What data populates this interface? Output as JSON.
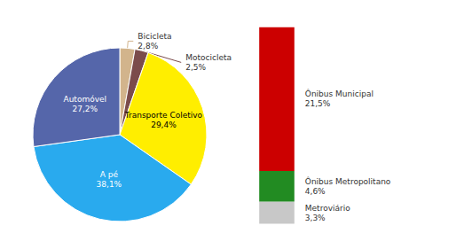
{
  "chart_data": [
    {
      "type": "pie",
      "categories": [
        "Bicicleta",
        "Motocicleta",
        "Transporte Coletivo",
        "A pé",
        "Automóvel"
      ],
      "values": [
        2.8,
        2.5,
        29.4,
        38.1,
        27.2
      ],
      "value_labels": [
        "2,8%",
        "2,5%",
        "29,4%",
        "38,1%",
        "27,2%"
      ],
      "colors": [
        "#D2B48C",
        "#7B4B4B",
        "#FFEE00",
        "#29AAEE",
        "#5566AA"
      ],
      "data_labels": true
    },
    {
      "type": "bar",
      "stacked": true,
      "categories": [
        null
      ],
      "series": [
        {
          "name": "Metroviário",
          "color": "#C8C8C8",
          "values": [
            3.3
          ],
          "value_labels": [
            "3,3%"
          ]
        },
        {
          "name": "Ônibus Metropolitano",
          "color": "#228B22",
          "values": [
            4.6
          ],
          "value_labels": [
            "4,6%"
          ]
        },
        {
          "name": "Ônibus Municipal",
          "color": "#CC0000",
          "values": [
            21.5
          ],
          "value_labels": [
            "21,5%"
          ]
        }
      ],
      "ylim": [
        -1,
        31.9
      ],
      "tick_labels": false,
      "grid": false,
      "data_labels": true
    }
  ]
}
